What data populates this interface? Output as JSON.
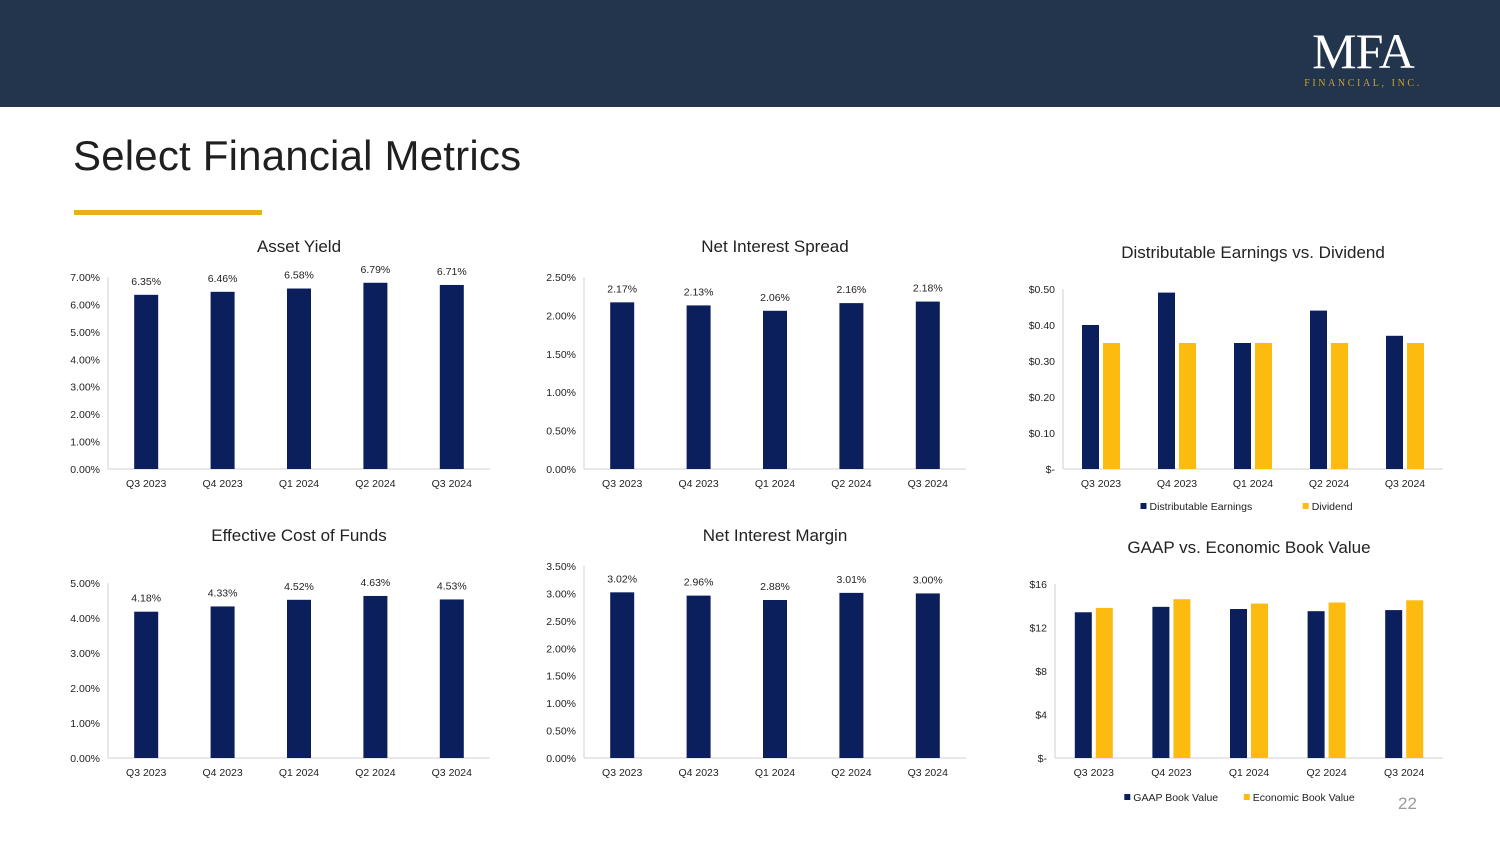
{
  "header": {
    "logo_main": "MFA",
    "logo_sub": "FINANCIAL, INC."
  },
  "page": {
    "title": "Select Financial Metrics",
    "number": "22"
  },
  "colors": {
    "banner": "#22354c",
    "navy": "#0b1f5c",
    "gold": "#fdbb10",
    "accent_rule": "#e3b21a"
  },
  "chart_data": [
    {
      "type": "bar",
      "title": "Asset Yield",
      "categories": [
        "Q3 2023",
        "Q4 2023",
        "Q1 2024",
        "Q2 2024",
        "Q3 2024"
      ],
      "values": [
        6.35,
        6.46,
        6.58,
        6.79,
        6.71
      ],
      "data_labels": [
        "6.35%",
        "6.46%",
        "6.58%",
        "6.79%",
        "6.71%"
      ],
      "ylim": [
        0,
        7
      ],
      "yticks": [
        0,
        1,
        2,
        3,
        4,
        5,
        6,
        7
      ],
      "ytick_labels": [
        "0.00%",
        "1.00%",
        "2.00%",
        "3.00%",
        "4.00%",
        "5.00%",
        "6.00%",
        "7.00%"
      ],
      "xlabel": "",
      "ylabel": "",
      "grid": false
    },
    {
      "type": "bar",
      "title": "Net Interest Spread",
      "categories": [
        "Q3 2023",
        "Q4 2023",
        "Q1 2024",
        "Q2 2024",
        "Q3 2024"
      ],
      "values": [
        2.17,
        2.13,
        2.06,
        2.16,
        2.18
      ],
      "data_labels": [
        "2.17%",
        "2.13%",
        "2.06%",
        "2.16%",
        "2.18%"
      ],
      "ylim": [
        0,
        2.5
      ],
      "yticks": [
        0,
        0.5,
        1,
        1.5,
        2,
        2.5
      ],
      "ytick_labels": [
        "0.00%",
        "0.50%",
        "1.00%",
        "1.50%",
        "2.00%",
        "2.50%"
      ],
      "xlabel": "",
      "ylabel": "",
      "grid": false
    },
    {
      "type": "bar",
      "title": "Distributable Earnings vs. Dividend",
      "categories": [
        "Q3 2023",
        "Q4 2023",
        "Q1 2024",
        "Q2 2024",
        "Q3 2024"
      ],
      "series": [
        {
          "name": "Distributable Earnings",
          "values": [
            0.4,
            0.49,
            0.35,
            0.44,
            0.37
          ]
        },
        {
          "name": "Dividend",
          "values": [
            0.35,
            0.35,
            0.35,
            0.35,
            0.35
          ]
        }
      ],
      "ylim": [
        0,
        0.5
      ],
      "yticks": [
        0,
        0.1,
        0.2,
        0.3,
        0.4,
        0.5
      ],
      "ytick_labels": [
        "$-",
        "$0.10",
        "$0.20",
        "$0.30",
        "$0.40",
        "$0.50"
      ],
      "legend": "bottom",
      "xlabel": "",
      "ylabel": "",
      "grid": false
    },
    {
      "type": "bar",
      "title": "Effective Cost of Funds",
      "categories": [
        "Q3 2023",
        "Q4 2023",
        "Q1 2024",
        "Q2 2024",
        "Q3 2024"
      ],
      "values": [
        4.18,
        4.33,
        4.52,
        4.63,
        4.53
      ],
      "data_labels": [
        "4.18%",
        "4.33%",
        "4.52%",
        "4.63%",
        "4.53%"
      ],
      "ylim": [
        0,
        5
      ],
      "yticks": [
        0,
        1,
        2,
        3,
        4,
        5
      ],
      "ytick_labels": [
        "0.00%",
        "1.00%",
        "2.00%",
        "3.00%",
        "4.00%",
        "5.00%"
      ],
      "xlabel": "",
      "ylabel": "",
      "grid": false
    },
    {
      "type": "bar",
      "title": "Net Interest Margin",
      "categories": [
        "Q3 2023",
        "Q4 2023",
        "Q1 2024",
        "Q2 2024",
        "Q3 2024"
      ],
      "values": [
        3.02,
        2.96,
        2.88,
        3.01,
        3.0
      ],
      "data_labels": [
        "3.02%",
        "2.96%",
        "2.88%",
        "3.01%",
        "3.00%"
      ],
      "ylim": [
        0,
        3.5
      ],
      "yticks": [
        0,
        0.5,
        1,
        1.5,
        2,
        2.5,
        3,
        3.5
      ],
      "ytick_labels": [
        "0.00%",
        "0.50%",
        "1.00%",
        "1.50%",
        "2.00%",
        "2.50%",
        "3.00%",
        "3.50%"
      ],
      "xlabel": "",
      "ylabel": "",
      "grid": false
    },
    {
      "type": "bar",
      "title": "GAAP vs. Economic Book Value",
      "categories": [
        "Q3 2023",
        "Q4 2023",
        "Q1 2024",
        "Q2 2024",
        "Q3 2024"
      ],
      "series": [
        {
          "name": "GAAP Book Value",
          "values": [
            13.4,
            13.9,
            13.7,
            13.5,
            13.6
          ]
        },
        {
          "name": "Economic Book Value",
          "values": [
            13.8,
            14.6,
            14.2,
            14.3,
            14.5
          ]
        }
      ],
      "ylim": [
        0,
        16
      ],
      "yticks": [
        0,
        4,
        8,
        12,
        16
      ],
      "ytick_labels": [
        "$-",
        "$4",
        "$8",
        "$12",
        "$16"
      ],
      "legend": "bottom",
      "xlabel": "",
      "ylabel": "",
      "grid": false
    }
  ]
}
